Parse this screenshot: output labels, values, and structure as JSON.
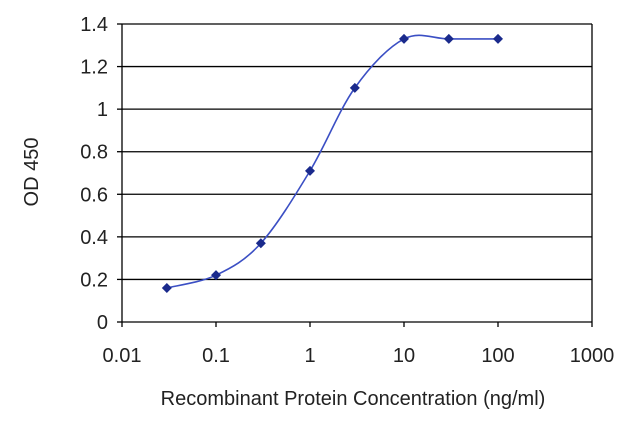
{
  "chart_data": {
    "type": "line",
    "title": "",
    "xlabel": "Recombinant Protein Concentration (ng/ml)",
    "ylabel": "OD 450",
    "x_scale": "log",
    "xlim": [
      0.01,
      1000
    ],
    "ylim": [
      0,
      1.4
    ],
    "x_ticks": [
      0.01,
      0.1,
      1,
      10,
      100,
      1000
    ],
    "x_tick_labels": [
      "0.01",
      "0.1",
      "1",
      "10",
      "100",
      "1000"
    ],
    "y_ticks": [
      0,
      0.2,
      0.4,
      0.6,
      0.8,
      1,
      1.2,
      1.4
    ],
    "y_tick_labels": [
      "0",
      "0.2",
      "0.4",
      "0.6",
      "0.8",
      "1",
      "1.2",
      "1.4"
    ],
    "grid": "horizontal",
    "legend": "none",
    "series": [
      {
        "x": [
          0.03,
          0.1,
          0.3,
          1,
          3,
          10,
          30,
          100
        ],
        "y": [
          0.16,
          0.22,
          0.37,
          0.71,
          1.1,
          1.33,
          1.33,
          1.33
        ],
        "color": "#3b4fc4",
        "marker_color": "#1a2a8c"
      }
    ],
    "colors": {
      "axis": "#000000",
      "grid": "#000000",
      "text": "#222222"
    }
  }
}
